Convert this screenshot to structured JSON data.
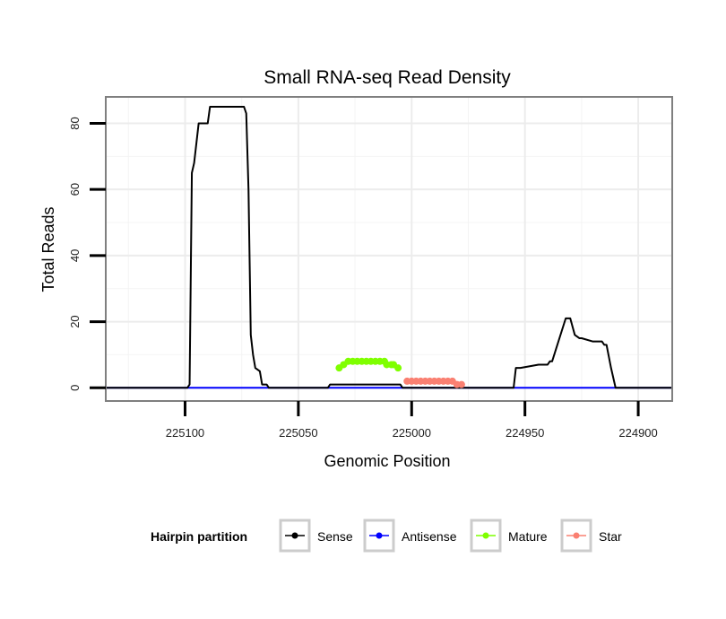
{
  "chart_data": {
    "type": "line",
    "title": "Small RNA-seq Read Density",
    "xlabel": "Genomic Position",
    "ylabel": "Total Reads",
    "xlim": [
      225135,
      224885
    ],
    "x_reversed": true,
    "ylim": [
      -4,
      88
    ],
    "x_ticks": [
      225100,
      225050,
      225000,
      224950,
      224900
    ],
    "x_tick_labels": [
      "225100",
      "225050",
      "225000",
      "224950",
      "224900"
    ],
    "y_ticks": [
      0,
      20,
      40,
      60,
      80
    ],
    "y_tick_labels": [
      "0",
      "20",
      "40",
      "60",
      "80"
    ],
    "grid": true,
    "legend": {
      "title": "Hairpin partition",
      "position": "bottom",
      "entries": [
        "Sense",
        "Antisense",
        "Mature",
        "Star"
      ]
    },
    "series": [
      {
        "name": "Sense",
        "color": "#000000",
        "x": [
          225135,
          225099,
          225098,
          225097,
          225096,
          225094,
          225093,
          225090,
          225089,
          225087,
          225075,
          225074,
          225073,
          225072,
          225071,
          225070,
          225069,
          225067,
          225066,
          225064,
          225063,
          225037,
          225036,
          225034,
          225005,
          225004,
          225002,
          224955,
          224954,
          224952,
          224944,
          224943,
          224940,
          224939,
          224938,
          224932,
          224931,
          224930,
          224928,
          224926,
          224925,
          224920,
          224916,
          224915,
          224914,
          224912,
          224910,
          224885
        ],
        "values": [
          0,
          0,
          1,
          65,
          68,
          80,
          80,
          80,
          85,
          85,
          85,
          85,
          83,
          60,
          16,
          10,
          6,
          5,
          1,
          1,
          0,
          0,
          1,
          1,
          1,
          0,
          0,
          0,
          6,
          6,
          7,
          7,
          7,
          8,
          8,
          21,
          21,
          21,
          16,
          15,
          15,
          14,
          14,
          13,
          13,
          6,
          0,
          0
        ]
      },
      {
        "name": "Antisense",
        "color": "#0000ff",
        "x": [
          225135,
          224885
        ],
        "values": [
          0,
          0
        ]
      },
      {
        "name": "Mature",
        "color": "#7fff00",
        "x": [
          225032,
          225030,
          225028,
          225026,
          225024,
          225022,
          225020,
          225018,
          225016,
          225014,
          225012,
          225011,
          225009,
          225008,
          225006
        ],
        "values": [
          6,
          7,
          8,
          8,
          8,
          8,
          8,
          8,
          8,
          8,
          8,
          7,
          7,
          7,
          6
        ]
      },
      {
        "name": "Star",
        "color": "#fa8072",
        "x": [
          225002,
          225000,
          224998,
          224996,
          224994,
          224992,
          224990,
          224988,
          224986,
          224984,
          224982,
          224980,
          224978
        ],
        "values": [
          2,
          2,
          2,
          2,
          2,
          2,
          2,
          2,
          2,
          2,
          2,
          1,
          1
        ]
      }
    ]
  }
}
